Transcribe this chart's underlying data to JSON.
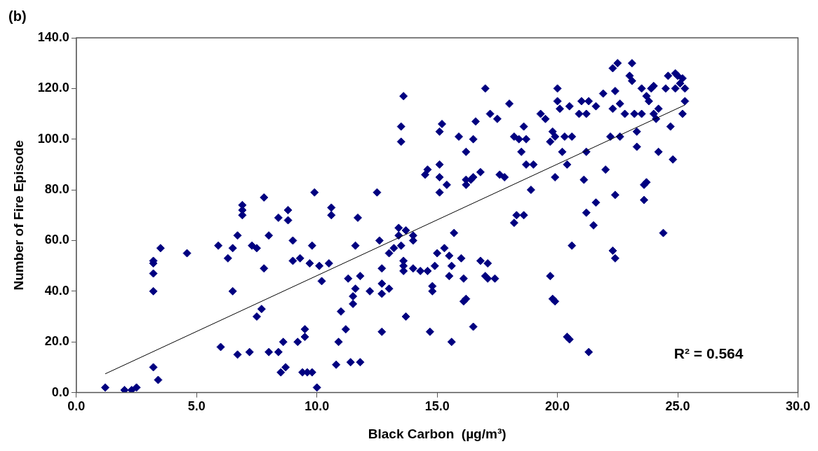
{
  "chart_data": {
    "type": "scatter",
    "title": "(b)",
    "xlabel": "Black Carbon  (µg/m³)",
    "ylabel": "Number of Fire Episode",
    "annotations": [
      "R² = 0.564"
    ],
    "xlim": [
      0,
      30
    ],
    "xticks": [
      {
        "value": 0,
        "label": "0.0"
      },
      {
        "value": 5,
        "label": "5.0"
      },
      {
        "value": 10,
        "label": "10.0"
      },
      {
        "value": 15,
        "label": "15.0"
      },
      {
        "value": 20,
        "label": "20.0"
      },
      {
        "value": 25,
        "label": "25.0"
      },
      {
        "value": 30,
        "label": "30.0"
      }
    ],
    "ylim": [
      0,
      140
    ],
    "yticks": [
      {
        "value": 0,
        "label": "0.0"
      },
      {
        "value": 20,
        "label": "20.0"
      },
      {
        "value": 40,
        "label": "40.0"
      },
      {
        "value": 60,
        "label": "60.0"
      },
      {
        "value": 80,
        "label": "80.0"
      },
      {
        "value": 100,
        "label": "100.0"
      },
      {
        "value": 120,
        "label": "120.0"
      },
      {
        "value": 140,
        "label": "140.0"
      }
    ],
    "grid": false,
    "legend": false,
    "marker": "diamond",
    "series": [
      {
        "type": "scatter",
        "color": "#000080",
        "x": [
          1.2,
          2.0,
          2.3,
          2.5,
          3.2,
          3.4,
          3.2,
          3.2,
          3.2,
          3.2,
          3.5,
          4.6,
          5.9,
          6.0,
          6.3,
          6.5,
          6.5,
          6.7,
          6.7,
          6.9,
          6.9,
          6.9,
          7.2,
          7.3,
          7.5,
          7.5,
          7.7,
          7.8,
          7.8,
          8.0,
          8.0,
          8.4,
          8.4,
          8.5,
          8.7,
          8.6,
          8.8,
          8.8,
          9.0,
          9.0,
          9.2,
          9.3,
          9.4,
          9.5,
          9.5,
          9.6,
          9.7,
          9.8,
          9.8,
          9.9,
          10.0,
          10.1,
          10.2,
          10.5,
          10.6,
          10.6,
          10.8,
          10.9,
          11.0,
          11.2,
          11.3,
          11.4,
          11.5,
          11.5,
          11.6,
          11.6,
          11.7,
          11.8,
          11.8,
          12.2,
          12.5,
          12.6,
          12.7,
          12.7,
          12.7,
          12.7,
          13.0,
          13.0,
          13.2,
          13.4,
          13.4,
          13.5,
          13.6,
          13.6,
          13.6,
          13.7,
          13.5,
          13.5,
          13.6,
          13.7,
          14.0,
          14.0,
          14.0,
          14.3,
          14.5,
          14.6,
          14.6,
          14.7,
          14.8,
          14.8,
          14.9,
          15.0,
          15.1,
          15.1,
          15.1,
          15.1,
          15.2,
          15.3,
          15.4,
          15.5,
          15.5,
          15.6,
          15.6,
          15.7,
          15.9,
          16.0,
          16.1,
          16.1,
          16.2,
          16.2,
          16.2,
          16.4,
          16.5,
          16.6,
          16.8,
          16.8,
          17.0,
          17.1,
          16.2,
          16.5,
          17.0,
          17.2,
          17.5,
          17.8,
          17.6,
          18.0,
          18.2,
          18.4,
          18.6,
          18.7,
          18.5,
          18.3,
          18.6,
          18.9,
          18.2,
          17.4,
          17.1,
          16.5,
          18.7,
          19.0,
          19.3,
          19.5,
          19.8,
          19.9,
          19.7,
          20.0,
          20.0,
          20.1,
          19.9,
          20.2,
          19.7,
          19.8,
          19.9,
          20.3,
          20.4,
          20.6,
          20.5,
          20.4,
          20.5,
          20.6,
          20.9,
          21.0,
          21.2,
          21.3,
          21.2,
          21.1,
          21.2,
          21.3,
          21.5,
          21.6,
          21.6,
          21.9,
          22.0,
          22.2,
          22.3,
          22.5,
          22.4,
          22.3,
          22.4,
          22.3,
          22.4,
          22.6,
          22.6,
          22.8,
          23.0,
          23.1,
          23.2,
          23.1,
          23.3,
          23.3,
          23.5,
          23.5,
          23.6,
          23.7,
          23.6,
          23.7,
          23.8,
          23.9,
          24.0,
          24.0,
          24.2,
          24.1,
          24.2,
          24.4,
          24.5,
          24.6,
          24.7,
          24.8,
          24.9,
          24.9,
          25.0,
          25.1,
          25.2,
          25.2,
          25.3,
          25.3
        ],
        "values": [
          2,
          1,
          1,
          2,
          10,
          5,
          40,
          47,
          51,
          52,
          57,
          55,
          58,
          18,
          53,
          57,
          40,
          62,
          15,
          70,
          72,
          74,
          16,
          58,
          57,
          30,
          33,
          49,
          77,
          62,
          16,
          69,
          16,
          8,
          10,
          20,
          68,
          72,
          52,
          60,
          20,
          53,
          8,
          22,
          25,
          8,
          51,
          8,
          58,
          79,
          2,
          50,
          44,
          51,
          70,
          73,
          11,
          20,
          32,
          25,
          45,
          12,
          35,
          38,
          58,
          41,
          69,
          12,
          46,
          40,
          79,
          60,
          24,
          49,
          43,
          39,
          41,
          55,
          57,
          62,
          65,
          58,
          52,
          50,
          48,
          64,
          99,
          105,
          117,
          30,
          62,
          60,
          49,
          48,
          86,
          88,
          48,
          24,
          42,
          40,
          50,
          55,
          79,
          85,
          90,
          103,
          106,
          57,
          82,
          46,
          54,
          50,
          20,
          63,
          101,
          53,
          45,
          36,
          37,
          82,
          84,
          84,
          85,
          107,
          52,
          87,
          46,
          45,
          95,
          100,
          120,
          110,
          108,
          85,
          86,
          114,
          101,
          100,
          105,
          90,
          95,
          70,
          70,
          80,
          67,
          45,
          51,
          26,
          100,
          90,
          110,
          108,
          103,
          101,
          99,
          120,
          115,
          112,
          85,
          95,
          46,
          37,
          36,
          101,
          90,
          101,
          113,
          22,
          21,
          58,
          110,
          115,
          110,
          115,
          95,
          84,
          71,
          16,
          66,
          75,
          113,
          118,
          88,
          101,
          128,
          130,
          119,
          112,
          78,
          56,
          53,
          114,
          101,
          110,
          125,
          130,
          110,
          123,
          97,
          103,
          110,
          120,
          82,
          83,
          76,
          117,
          115,
          120,
          121,
          110,
          112,
          108,
          95,
          63,
          120,
          125,
          105,
          92,
          120,
          126,
          125,
          122,
          124,
          110,
          115,
          120
        ]
      },
      {
        "type": "line",
        "color": "#000000",
        "x": [
          1.2,
          25.3
        ],
        "values": [
          7.4,
          113.5
        ],
        "marker": "none",
        "line_style": "solid"
      }
    ]
  }
}
